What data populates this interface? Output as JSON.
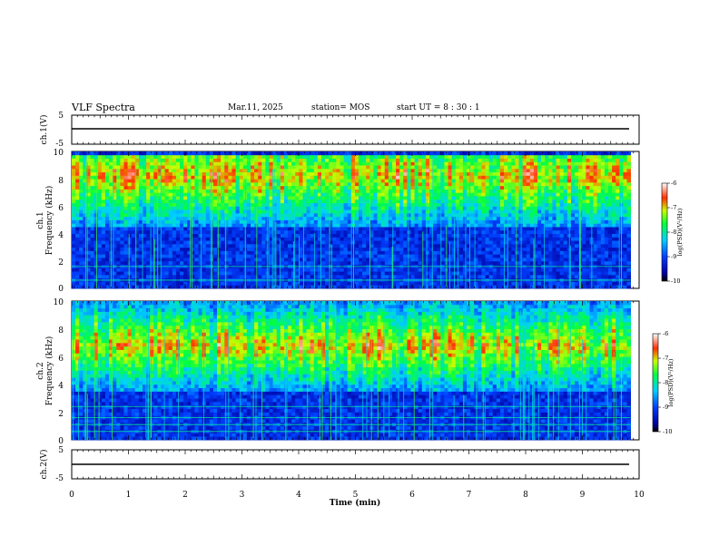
{
  "header": {
    "title": "VLF Spectra",
    "date": "Mar.11, 2025",
    "station": "station= MOS",
    "start": "start  UT =   8 : 30 : 1"
  },
  "colors": {
    "background": "#ffffff",
    "axes": "#000000",
    "spectrogram_floor": "#000000"
  },
  "chart_data": [
    {
      "type": "line",
      "panel": "ch1-waveform",
      "ylabel": "ch.1(V)",
      "yticks": [
        "5",
        "-5"
      ],
      "ylim": [
        -5,
        5
      ],
      "series_level": 0
    },
    {
      "type": "heatmap",
      "panel": "ch1-spectrogram",
      "ylabel_lines": [
        "ch.1",
        "Frequency (kHz)"
      ],
      "yticks": [
        "0",
        "2",
        "4",
        "6",
        "8",
        "10"
      ],
      "ylim": [
        0,
        10
      ],
      "colorbar": {
        "ticks": [
          "-6",
          "-7",
          "-8",
          "-9",
          "-10"
        ],
        "label": "log(PSD)(V²/Hz)",
        "range": [
          -10,
          -6
        ]
      },
      "band_khz": [
        4.5,
        9.8
      ],
      "peak_khz": 8.3,
      "lines_khz": [
        0.6,
        1.6
      ]
    },
    {
      "type": "heatmap",
      "panel": "ch2-spectrogram",
      "ylabel_lines": [
        "ch.2",
        "Frequency (kHz)"
      ],
      "yticks": [
        "0",
        "2",
        "4",
        "6",
        "8",
        "10"
      ],
      "ylim": [
        0,
        10
      ],
      "colorbar": {
        "ticks": [
          "-6",
          "-7",
          "-8",
          "-9",
          "-10"
        ],
        "label": "log(PSD)(V²/Hz)",
        "range": [
          -10,
          -6
        ]
      },
      "band_khz": [
        3.5,
        10
      ],
      "peak_khz": 6.8,
      "lines_khz": [
        0.6,
        1.1,
        1.6,
        2.4
      ]
    },
    {
      "type": "line",
      "panel": "ch2-waveform",
      "ylabel": "ch.2(V)",
      "yticks": [
        "5",
        "-5"
      ],
      "ylim": [
        -5,
        5
      ],
      "series_level": 0
    }
  ],
  "xaxis": {
    "label": "Time (min)",
    "ticks": [
      "0",
      "1",
      "2",
      "3",
      "4",
      "5",
      "6",
      "7",
      "8",
      "9",
      "10"
    ],
    "xlim": [
      0,
      10
    ],
    "data_end": 9.85
  }
}
